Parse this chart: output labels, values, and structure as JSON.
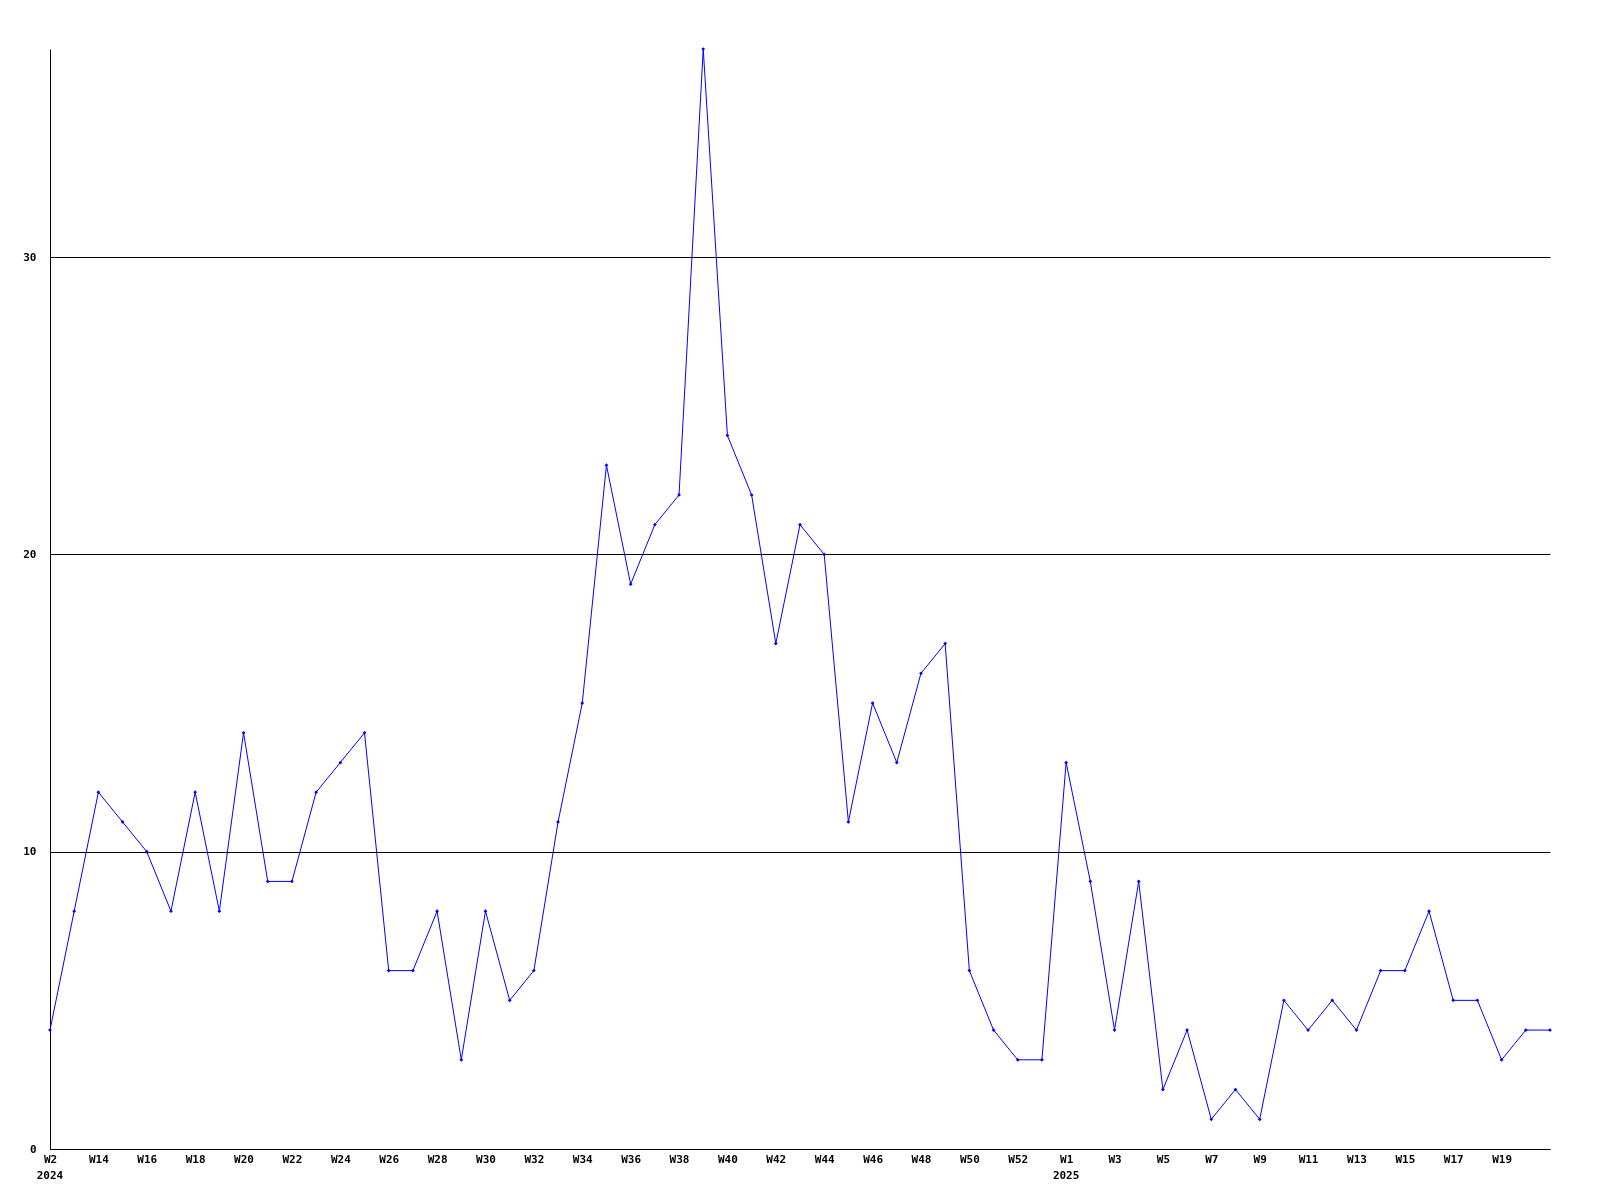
{
  "chart_data": {
    "type": "line",
    "categories": [
      "W2",
      null,
      "W14",
      null,
      "W16",
      null,
      "W18",
      null,
      "W20",
      null,
      "W22",
      null,
      "W24",
      null,
      "W26",
      null,
      "W28",
      null,
      "W30",
      null,
      "W32",
      null,
      "W34",
      null,
      "W36",
      null,
      "W38",
      null,
      "W40",
      null,
      "W42",
      null,
      "W44",
      null,
      "W46",
      null,
      "W48",
      null,
      "W50",
      null,
      "W52",
      null,
      "W1",
      null,
      "W3",
      null,
      "W5",
      null,
      "W7",
      null,
      "W9",
      null,
      "W11",
      null,
      "W13",
      null,
      "W15",
      null,
      "W17",
      null,
      "W19",
      null,
      null
    ],
    "series": [
      {
        "color": "#0000ff",
        "values": [
          4,
          8,
          12,
          11,
          10,
          8,
          12,
          8,
          14,
          9,
          9,
          12,
          13,
          14,
          6,
          6,
          8,
          3,
          8,
          5,
          6,
          11,
          15,
          23,
          19,
          21,
          22,
          37,
          24,
          22,
          17,
          21,
          20,
          11,
          15,
          13,
          16,
          17,
          6,
          4,
          3,
          3,
          13,
          9,
          4,
          9,
          2,
          4,
          1,
          2,
          1,
          5,
          4,
          5,
          4,
          6,
          6,
          8,
          5,
          5,
          3,
          4,
          4
        ]
      }
    ],
    "ylim": [
      0,
      37
    ],
    "yticks": [
      0,
      10,
      20,
      30
    ],
    "grid": "y",
    "marker": "diamond",
    "line_style": "solid",
    "annotations": [
      "2024",
      "2025"
    ]
  }
}
